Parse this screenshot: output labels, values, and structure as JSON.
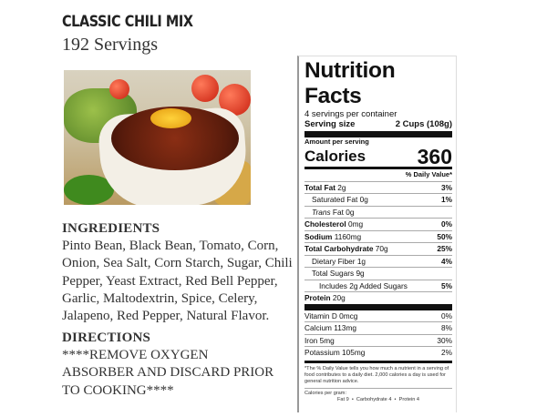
{
  "product": {
    "title": "CLASSIC CHILI MIX",
    "servings": "192 Servings"
  },
  "ingredients": {
    "heading": "INGREDIENTS",
    "text": "Pinto Bean, Black Bean, Tomato, Corn, Onion, Sea Salt, Corn Starch, Sugar, Chili Pepper, Yeast Extract, Red Bell Pepper, Garlic, Maltodextrin, Spice, Celery, Jalapeno, Red Pepper, Natural Flavor."
  },
  "directions": {
    "heading": "DIRECTIONS",
    "text": "****REMOVE OXYGEN ABSORBER AND DISCARD PRIOR TO COOKING****"
  },
  "nutrition": {
    "title": "Nutrition Facts",
    "servings_per_container": "4 servings per container",
    "serving_size_label": "Serving size",
    "serving_size_value": "2 Cups (108g)",
    "amount_per_serving": "Amount per serving",
    "calories_label": "Calories",
    "calories_value": "360",
    "dv_header": "% Daily Value*",
    "rows": [
      {
        "label": "Total Fat",
        "amount": "2g",
        "dv": "3%"
      },
      {
        "label": "Saturated Fat",
        "amount": "0g",
        "dv": "1%"
      },
      {
        "label": "Trans",
        "amount": "Fat 0g",
        "dv": ""
      },
      {
        "label": "Cholesterol",
        "amount": "0mg",
        "dv": "0%"
      },
      {
        "label": "Sodium",
        "amount": "1160mg",
        "dv": "50%"
      },
      {
        "label": "Total Carbohydrate",
        "amount": "70g",
        "dv": "25%"
      },
      {
        "label": "Dietary Fiber",
        "amount": "1g",
        "dv": "4%"
      },
      {
        "label": "Total Sugars",
        "amount": "9g",
        "dv": ""
      },
      {
        "label": "Includes 2g Added Sugars",
        "amount": "",
        "dv": "5%"
      },
      {
        "label": "Protein",
        "amount": "20g",
        "dv": ""
      }
    ],
    "vitamins": [
      {
        "label": "Vitamin D 0mcg",
        "dv": "0%"
      },
      {
        "label": "Calcium 113mg",
        "dv": "8%"
      },
      {
        "label": "Iron 5mg",
        "dv": "30%"
      },
      {
        "label": "Potassium 105mg",
        "dv": "2%"
      }
    ],
    "footnote": "*The % Daily Value tells you how much a nutrient in a serving of food contributes to a daily diet. 2,000 calories a day is used for general nutrition advice.",
    "calories_per_gram_label": "Calories per gram:",
    "calories_per_gram": "Fat 9  •  Carbohydrate 4  •  Protein 4"
  }
}
